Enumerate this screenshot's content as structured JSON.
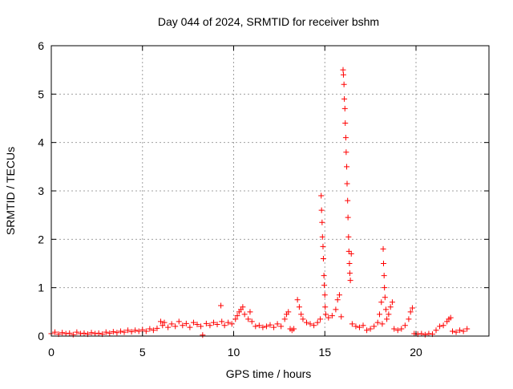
{
  "chart_data": {
    "type": "scatter",
    "title": "Day 044 of 2024, SRMTID for receiver bshm",
    "xlabel": "GPS time / hours",
    "ylabel": "SRMTID / TECUs",
    "xlim": [
      0,
      24
    ],
    "ylim": [
      0,
      6
    ],
    "xticks": [
      0,
      5,
      10,
      15,
      20
    ],
    "yticks": [
      0,
      1,
      2,
      3,
      4,
      5,
      6
    ],
    "grid": true,
    "legend": "none",
    "marker": "plus",
    "color": "#ff0000",
    "series": [
      {
        "points": [
          [
            0.0,
            0.05
          ],
          [
            0.2,
            0.08
          ],
          [
            0.4,
            0.04
          ],
          [
            0.6,
            0.07
          ],
          [
            0.8,
            0.05
          ],
          [
            1.0,
            0.06
          ],
          [
            1.2,
            0.03
          ],
          [
            1.4,
            0.08
          ],
          [
            1.6,
            0.05
          ],
          [
            1.8,
            0.06
          ],
          [
            2.0,
            0.04
          ],
          [
            2.2,
            0.07
          ],
          [
            2.4,
            0.05
          ],
          [
            2.6,
            0.06
          ],
          [
            2.8,
            0.04
          ],
          [
            3.0,
            0.08
          ],
          [
            3.2,
            0.06
          ],
          [
            3.4,
            0.09
          ],
          [
            3.6,
            0.07
          ],
          [
            3.8,
            0.1
          ],
          [
            4.0,
            0.08
          ],
          [
            4.2,
            0.12
          ],
          [
            4.4,
            0.09
          ],
          [
            4.6,
            0.12
          ],
          [
            4.8,
            0.1
          ],
          [
            5.0,
            0.13
          ],
          [
            5.2,
            0.1
          ],
          [
            5.4,
            0.15
          ],
          [
            5.6,
            0.12
          ],
          [
            5.8,
            0.16
          ],
          [
            6.0,
            0.3
          ],
          [
            6.1,
            0.22
          ],
          [
            6.2,
            0.28
          ],
          [
            6.4,
            0.18
          ],
          [
            6.6,
            0.25
          ],
          [
            6.8,
            0.2
          ],
          [
            7.0,
            0.3
          ],
          [
            7.2,
            0.22
          ],
          [
            7.4,
            0.26
          ],
          [
            7.6,
            0.18
          ],
          [
            7.8,
            0.28
          ],
          [
            8.0,
            0.24
          ],
          [
            8.2,
            0.2
          ],
          [
            8.3,
            0.02
          ],
          [
            8.5,
            0.26
          ],
          [
            8.7,
            0.22
          ],
          [
            8.9,
            0.28
          ],
          [
            9.1,
            0.24
          ],
          [
            9.3,
            0.63
          ],
          [
            9.35,
            0.3
          ],
          [
            9.5,
            0.22
          ],
          [
            9.7,
            0.28
          ],
          [
            9.9,
            0.25
          ],
          [
            10.1,
            0.35
          ],
          [
            10.2,
            0.42
          ],
          [
            10.3,
            0.5
          ],
          [
            10.4,
            0.55
          ],
          [
            10.5,
            0.6
          ],
          [
            10.6,
            0.45
          ],
          [
            10.8,
            0.35
          ],
          [
            10.9,
            0.5
          ],
          [
            11.0,
            0.3
          ],
          [
            11.2,
            0.2
          ],
          [
            11.4,
            0.22
          ],
          [
            11.6,
            0.18
          ],
          [
            11.8,
            0.2
          ],
          [
            12.0,
            0.23
          ],
          [
            12.2,
            0.18
          ],
          [
            12.4,
            0.25
          ],
          [
            12.6,
            0.2
          ],
          [
            12.8,
            0.35
          ],
          [
            12.9,
            0.45
          ],
          [
            13.0,
            0.5
          ],
          [
            13.1,
            0.15
          ],
          [
            13.2,
            0.12
          ],
          [
            13.3,
            0.15
          ],
          [
            13.5,
            0.75
          ],
          [
            13.6,
            0.6
          ],
          [
            13.7,
            0.45
          ],
          [
            13.8,
            0.35
          ],
          [
            14.0,
            0.28
          ],
          [
            14.2,
            0.25
          ],
          [
            14.4,
            0.22
          ],
          [
            14.6,
            0.28
          ],
          [
            14.75,
            0.35
          ],
          [
            14.8,
            2.9
          ],
          [
            14.82,
            2.6
          ],
          [
            14.85,
            2.35
          ],
          [
            14.87,
            2.05
          ],
          [
            14.9,
            1.85
          ],
          [
            14.92,
            1.6
          ],
          [
            14.95,
            1.25
          ],
          [
            14.97,
            1.05
          ],
          [
            15.0,
            0.85
          ],
          [
            15.02,
            0.6
          ],
          [
            15.05,
            0.45
          ],
          [
            15.2,
            0.38
          ],
          [
            15.4,
            0.42
          ],
          [
            15.6,
            0.55
          ],
          [
            15.7,
            0.75
          ],
          [
            15.8,
            0.85
          ],
          [
            15.9,
            0.4
          ],
          [
            16.0,
            5.5
          ],
          [
            16.02,
            5.4
          ],
          [
            16.05,
            5.2
          ],
          [
            16.07,
            4.9
          ],
          [
            16.1,
            4.7
          ],
          [
            16.12,
            4.4
          ],
          [
            16.15,
            4.1
          ],
          [
            16.17,
            3.8
          ],
          [
            16.2,
            3.5
          ],
          [
            16.22,
            3.15
          ],
          [
            16.25,
            2.8
          ],
          [
            16.27,
            2.45
          ],
          [
            16.3,
            2.05
          ],
          [
            16.32,
            1.75
          ],
          [
            16.35,
            1.5
          ],
          [
            16.37,
            1.3
          ],
          [
            16.4,
            1.15
          ],
          [
            16.45,
            1.7
          ],
          [
            16.5,
            0.25
          ],
          [
            16.7,
            0.2
          ],
          [
            16.9,
            0.18
          ],
          [
            17.1,
            0.22
          ],
          [
            17.3,
            0.12
          ],
          [
            17.5,
            0.15
          ],
          [
            17.7,
            0.2
          ],
          [
            17.9,
            0.28
          ],
          [
            18.0,
            0.45
          ],
          [
            18.1,
            0.7
          ],
          [
            18.15,
            0.25
          ],
          [
            18.2,
            1.8
          ],
          [
            18.22,
            1.5
          ],
          [
            18.25,
            1.25
          ],
          [
            18.27,
            1.0
          ],
          [
            18.3,
            0.8
          ],
          [
            18.35,
            0.55
          ],
          [
            18.4,
            0.35
          ],
          [
            18.5,
            0.45
          ],
          [
            18.6,
            0.6
          ],
          [
            18.7,
            0.7
          ],
          [
            18.8,
            0.15
          ],
          [
            19.0,
            0.12
          ],
          [
            19.2,
            0.15
          ],
          [
            19.4,
            0.22
          ],
          [
            19.6,
            0.35
          ],
          [
            19.7,
            0.5
          ],
          [
            19.8,
            0.58
          ],
          [
            19.9,
            0.05
          ],
          [
            20.1,
            0.04
          ],
          [
            20.3,
            0.05
          ],
          [
            20.5,
            0.03
          ],
          [
            20.7,
            0.05
          ],
          [
            20.9,
            0.04
          ],
          [
            21.1,
            0.12
          ],
          [
            21.3,
            0.2
          ],
          [
            21.5,
            0.22
          ],
          [
            21.7,
            0.3
          ],
          [
            21.8,
            0.35
          ],
          [
            21.9,
            0.38
          ],
          [
            22.0,
            0.1
          ],
          [
            22.2,
            0.08
          ],
          [
            22.4,
            0.12
          ],
          [
            22.6,
            0.1
          ],
          [
            22.8,
            0.15
          ]
        ]
      }
    ]
  }
}
